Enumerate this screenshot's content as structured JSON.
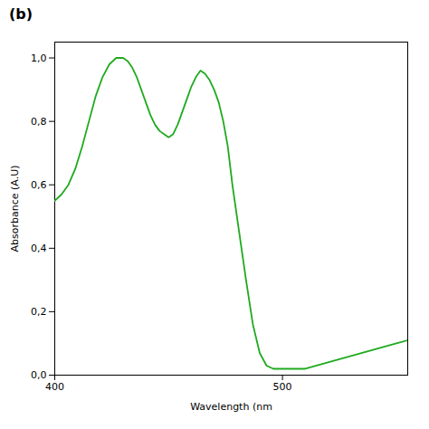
{
  "chart_data": {
    "type": "line",
    "title": "(b)",
    "xlabel": "Wavelength (nm",
    "ylabel": "Absorbance (A.U)",
    "color": "#1faa1f",
    "x": [
      400,
      403,
      406,
      409,
      412,
      415,
      418,
      421,
      424,
      427,
      430,
      432,
      434,
      436,
      438,
      440,
      442,
      444,
      446,
      448,
      450,
      452,
      454,
      456,
      458,
      460,
      462,
      464,
      466,
      468,
      470,
      472,
      474,
      476,
      478,
      481,
      484,
      487,
      490,
      493,
      496,
      499,
      502,
      505,
      510,
      515,
      520,
      525,
      530,
      535,
      540,
      545,
      550,
      555
    ],
    "values": [
      0.55,
      0.57,
      0.6,
      0.65,
      0.72,
      0.8,
      0.88,
      0.94,
      0.98,
      1.0,
      1.0,
      0.99,
      0.97,
      0.94,
      0.9,
      0.86,
      0.82,
      0.79,
      0.77,
      0.76,
      0.75,
      0.76,
      0.79,
      0.83,
      0.87,
      0.91,
      0.94,
      0.96,
      0.95,
      0.93,
      0.9,
      0.86,
      0.8,
      0.72,
      0.6,
      0.45,
      0.3,
      0.16,
      0.07,
      0.03,
      0.02,
      0.02,
      0.02,
      0.02,
      0.02,
      0.03,
      0.04,
      0.05,
      0.06,
      0.07,
      0.08,
      0.09,
      0.1,
      0.11
    ],
    "xlim": [
      400,
      555
    ],
    "ylim": [
      0.0,
      1.05
    ],
    "xticks": [
      400,
      500
    ],
    "yticks": [
      {
        "value": 0.0,
        "label": "0,0"
      },
      {
        "value": 0.2,
        "label": "0,2"
      },
      {
        "value": 0.4,
        "label": "0,4"
      },
      {
        "value": 0.6,
        "label": "0,6"
      },
      {
        "value": 0.8,
        "label": "0,8"
      },
      {
        "value": 1.0,
        "label": "1,0"
      }
    ],
    "grid": false
  }
}
